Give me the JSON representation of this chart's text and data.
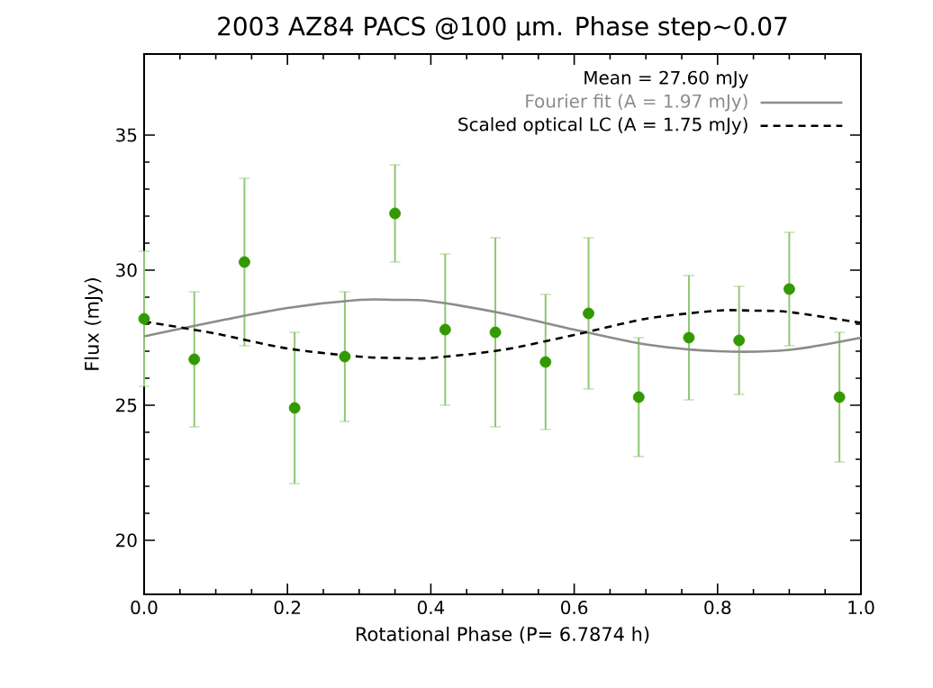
{
  "chart_data": {
    "type": "scatter",
    "title": "2003 AZ84 PACS @100 μm. Phase step~0.07",
    "xlabel": "Rotational Phase (P= 6.7874 h)",
    "ylabel": "Flux (mJy)",
    "annotations": [
      "Mean = 27.60 mJy"
    ],
    "xlim": [
      0,
      1
    ],
    "ylim": [
      18,
      38
    ],
    "xticks": [
      {
        "value": 0,
        "label": "0.0"
      },
      {
        "value": 0.2,
        "label": "0.2"
      },
      {
        "value": 0.4,
        "label": "0.4"
      },
      {
        "value": 0.6,
        "label": "0.6"
      },
      {
        "value": 0.8,
        "label": "0.8"
      },
      {
        "value": 1,
        "label": "1.0"
      }
    ],
    "yticks": [
      20,
      25,
      30,
      35
    ],
    "legend": "top right",
    "grid": false,
    "series": [
      {
        "color": "#339900",
        "marker": "circle",
        "x": [
          0,
          0.07,
          0.14,
          0.21,
          0.28,
          0.35,
          0.42,
          0.49,
          0.56,
          0.62,
          0.69,
          0.76,
          0.83,
          0.9,
          0.97
        ],
        "values": [
          28.2,
          26.7,
          30.3,
          24.9,
          26.8,
          32.1,
          27.8,
          27.7,
          26.6,
          28.4,
          25.3,
          27.5,
          27.4,
          29.3,
          25.3
        ],
        "errors": [
          2.5,
          2.5,
          3.1,
          2.8,
          2.4,
          1.8,
          2.8,
          3.5,
          2.5,
          2.8,
          2.2,
          2.3,
          2.0,
          2.1,
          2.4
        ]
      },
      {
        "type": "line",
        "name": "Fourier fit (A = 1.97 mJy)",
        "color": "#8c8c8c",
        "marker": "none",
        "line_style": "solid",
        "x": [
          0,
          0.1,
          0.2,
          0.3,
          0.35,
          0.4,
          0.5,
          0.6,
          0.7,
          0.8,
          0.9,
          1.0
        ],
        "values": [
          27.55,
          28.1,
          28.6,
          28.9,
          28.9,
          28.85,
          28.4,
          27.8,
          27.25,
          27.0,
          27.05,
          27.5
        ]
      },
      {
        "type": "line",
        "name": "Scaled optical LC (A = 1.75 mJy)",
        "color": "#000000",
        "marker": "none",
        "line_style": "dashed",
        "x": [
          0,
          0.1,
          0.2,
          0.3,
          0.35,
          0.4,
          0.5,
          0.6,
          0.7,
          0.8,
          0.85,
          0.9,
          1.0
        ],
        "values": [
          28.1,
          27.65,
          27.1,
          26.8,
          26.75,
          26.75,
          27.05,
          27.6,
          28.2,
          28.5,
          28.5,
          28.45,
          28.05
        ]
      }
    ]
  }
}
